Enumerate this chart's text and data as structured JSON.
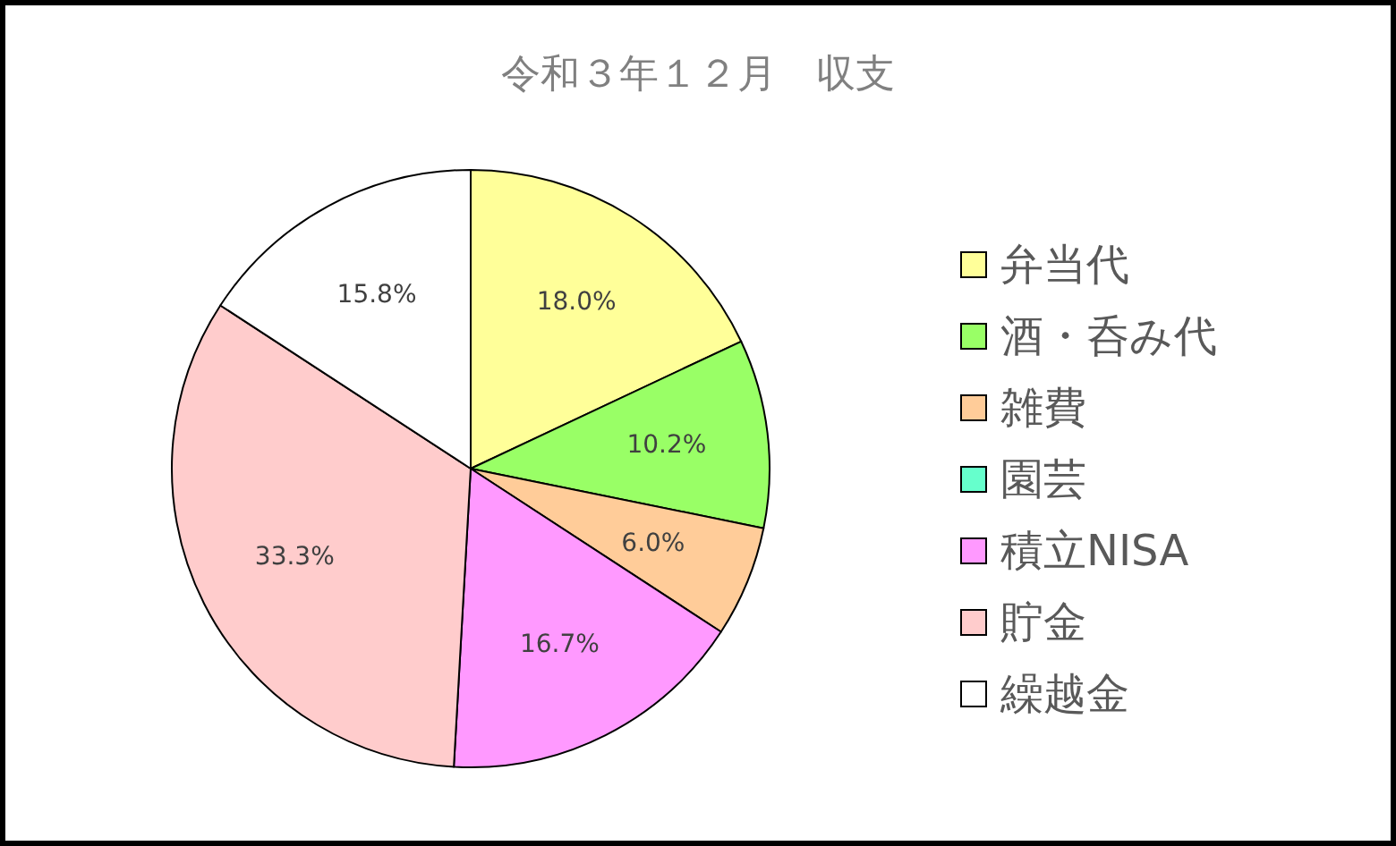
{
  "chart_data": {
    "type": "pie",
    "title": "令和３年１２月　収支",
    "categories": [
      "弁当代",
      "酒・呑み代",
      "雑費",
      "園芸",
      "積立NISA",
      "貯金",
      "繰越金"
    ],
    "values": [
      18.0,
      10.2,
      6.0,
      0,
      16.7,
      33.3,
      15.8
    ],
    "value_labels": [
      "18.0%",
      "10.2%",
      "6.0%",
      null,
      "16.7%",
      "33.3%",
      "15.8%"
    ],
    "colors": [
      "#ffff99",
      "#99ff66",
      "#ffcc99",
      "#66ffcc",
      "#ff99ff",
      "#ffcccc",
      "#ffffff"
    ],
    "legend": "right"
  }
}
